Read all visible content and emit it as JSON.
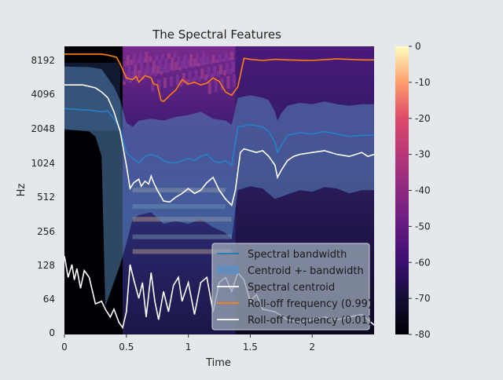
{
  "chart_data": {
    "type": "spectrogram",
    "title": "The Spectral Features",
    "xlabel": "Time",
    "ylabel": "Hz",
    "xlim": [
      0,
      2.5
    ],
    "y_scale": "log2",
    "y_ticks": [
      {
        "value": 0,
        "label": "0"
      },
      {
        "value": 64,
        "label": "64"
      },
      {
        "value": 128,
        "label": "128"
      },
      {
        "value": 256,
        "label": "256"
      },
      {
        "value": 512,
        "label": "512"
      },
      {
        "value": 1024,
        "label": "1024"
      },
      {
        "value": 2048,
        "label": "2048"
      },
      {
        "value": 4096,
        "label": "4096"
      },
      {
        "value": 8192,
        "label": "8192"
      }
    ],
    "x_ticks": [
      {
        "value": 0,
        "label": "0"
      },
      {
        "value": 0.5,
        "label": "0.5"
      },
      {
        "value": 1,
        "label": "1"
      },
      {
        "value": 1.5,
        "label": "1.5"
      },
      {
        "value": 2,
        "label": "2"
      }
    ],
    "colorbar": {
      "colormap": "magma",
      "range": [
        -80,
        0
      ],
      "ticks": [
        "0",
        "-10",
        "-20",
        "-30",
        "-40",
        "-50",
        "-60",
        "-70",
        "-80"
      ]
    },
    "grid": false,
    "legend_position": "lower right",
    "series": [
      {
        "name": "Spectral bandwidth",
        "color": "#1f77b4",
        "style": "line"
      },
      {
        "name": "Centroid +- bandwidth",
        "color": "#5b8fc4",
        "style": "band"
      },
      {
        "name": "Spectral centroid",
        "color": "#ffffff",
        "style": "line"
      },
      {
        "name": "Roll-off frequency (0.99)",
        "color": "#ff7f0e",
        "style": "line"
      },
      {
        "name": "Roll-off frequency (0.01)",
        "color": "#ffffff",
        "style": "line"
      }
    ],
    "lines": {
      "bandwidth": [
        [
          0,
          3200
        ],
        [
          0.2,
          3100
        ],
        [
          0.3,
          3000
        ],
        [
          0.35,
          3050
        ],
        [
          0.4,
          2600
        ],
        [
          0.45,
          2100
        ],
        [
          0.5,
          1300
        ],
        [
          0.55,
          1150
        ],
        [
          0.6,
          1050
        ],
        [
          0.65,
          1200
        ],
        [
          0.7,
          1250
        ],
        [
          0.75,
          1200
        ],
        [
          0.8,
          1100
        ],
        [
          0.85,
          1050
        ],
        [
          0.9,
          1050
        ],
        [
          0.95,
          1100
        ],
        [
          1.0,
          1150
        ],
        [
          1.05,
          1100
        ],
        [
          1.1,
          1200
        ],
        [
          1.15,
          1250
        ],
        [
          1.2,
          1100
        ],
        [
          1.25,
          1050
        ],
        [
          1.3,
          1100
        ],
        [
          1.35,
          1000
        ],
        [
          1.4,
          2200
        ],
        [
          1.5,
          2300
        ],
        [
          1.6,
          2200
        ],
        [
          1.65,
          2000
        ],
        [
          1.7,
          1600
        ],
        [
          1.72,
          1300
        ],
        [
          1.75,
          1500
        ],
        [
          1.8,
          1850
        ],
        [
          1.9,
          1950
        ],
        [
          2.0,
          1900
        ],
        [
          2.1,
          2000
        ],
        [
          2.2,
          1900
        ],
        [
          2.3,
          1800
        ],
        [
          2.4,
          1850
        ],
        [
          2.5,
          1850
        ]
      ],
      "band_upper": [
        [
          0,
          7600
        ],
        [
          0.2,
          7500
        ],
        [
          0.3,
          7200
        ],
        [
          0.35,
          6000
        ],
        [
          0.4,
          5000
        ],
        [
          0.45,
          3800
        ],
        [
          0.5,
          2400
        ],
        [
          0.55,
          2200
        ],
        [
          0.6,
          2500
        ],
        [
          0.7,
          2600
        ],
        [
          0.8,
          2500
        ],
        [
          0.9,
          2700
        ],
        [
          1.0,
          2800
        ],
        [
          1.1,
          3000
        ],
        [
          1.2,
          2600
        ],
        [
          1.3,
          2500
        ],
        [
          1.35,
          2300
        ],
        [
          1.4,
          4000
        ],
        [
          1.5,
          4200
        ],
        [
          1.6,
          4000
        ],
        [
          1.65,
          3800
        ],
        [
          1.7,
          3000
        ],
        [
          1.72,
          2500
        ],
        [
          1.75,
          2900
        ],
        [
          1.8,
          3400
        ],
        [
          1.9,
          3600
        ],
        [
          2.0,
          3500
        ],
        [
          2.1,
          3700
        ],
        [
          2.2,
          3500
        ],
        [
          2.3,
          3400
        ],
        [
          2.4,
          3500
        ],
        [
          2.5,
          3500
        ]
      ],
      "band_lower": [
        [
          0,
          2100
        ],
        [
          0.2,
          2000
        ],
        [
          0.25,
          1800
        ],
        [
          0.3,
          1200
        ],
        [
          0.33,
          50
        ],
        [
          0.45,
          130
        ],
        [
          0.5,
          200
        ],
        [
          0.55,
          330
        ],
        [
          0.6,
          360
        ],
        [
          0.7,
          380
        ],
        [
          0.8,
          300
        ],
        [
          0.9,
          320
        ],
        [
          1.0,
          300
        ],
        [
          1.1,
          330
        ],
        [
          1.2,
          280
        ],
        [
          1.3,
          250
        ],
        [
          1.35,
          220
        ],
        [
          1.4,
          600
        ],
        [
          1.5,
          650
        ],
        [
          1.6,
          620
        ],
        [
          1.7,
          500
        ],
        [
          1.8,
          550
        ],
        [
          1.9,
          600
        ],
        [
          2.0,
          580
        ],
        [
          2.1,
          640
        ],
        [
          2.2,
          620
        ],
        [
          2.3,
          560
        ],
        [
          2.4,
          600
        ],
        [
          2.5,
          600
        ]
      ],
      "centroid": [
        [
          0,
          5200
        ],
        [
          0.15,
          5200
        ],
        [
          0.25,
          4900
        ],
        [
          0.3,
          4500
        ],
        [
          0.35,
          4000
        ],
        [
          0.4,
          3000
        ],
        [
          0.45,
          2000
        ],
        [
          0.5,
          1000
        ],
        [
          0.53,
          620
        ],
        [
          0.56,
          700
        ],
        [
          0.6,
          750
        ],
        [
          0.62,
          650
        ],
        [
          0.65,
          720
        ],
        [
          0.68,
          680
        ],
        [
          0.7,
          800
        ],
        [
          0.72,
          700
        ],
        [
          0.75,
          600
        ],
        [
          0.8,
          480
        ],
        [
          0.85,
          470
        ],
        [
          0.9,
          520
        ],
        [
          0.95,
          560
        ],
        [
          1.0,
          620
        ],
        [
          1.05,
          560
        ],
        [
          1.1,
          600
        ],
        [
          1.15,
          700
        ],
        [
          1.2,
          780
        ],
        [
          1.25,
          600
        ],
        [
          1.3,
          500
        ],
        [
          1.35,
          440
        ],
        [
          1.38,
          600
        ],
        [
          1.42,
          1300
        ],
        [
          1.45,
          1400
        ],
        [
          1.5,
          1350
        ],
        [
          1.55,
          1300
        ],
        [
          1.6,
          1350
        ],
        [
          1.65,
          1200
        ],
        [
          1.7,
          1000
        ],
        [
          1.72,
          780
        ],
        [
          1.75,
          900
        ],
        [
          1.8,
          1100
        ],
        [
          1.85,
          1200
        ],
        [
          1.9,
          1250
        ],
        [
          2.0,
          1300
        ],
        [
          2.1,
          1350
        ],
        [
          2.2,
          1250
        ],
        [
          2.3,
          1200
        ],
        [
          2.4,
          1300
        ],
        [
          2.45,
          1200
        ],
        [
          2.5,
          1250
        ]
      ],
      "rolloff_99": [
        [
          0,
          9800
        ],
        [
          0.3,
          9800
        ],
        [
          0.35,
          9600
        ],
        [
          0.42,
          9200
        ],
        [
          0.45,
          8000
        ],
        [
          0.5,
          6000
        ],
        [
          0.55,
          5800
        ],
        [
          0.58,
          6200
        ],
        [
          0.6,
          5500
        ],
        [
          0.65,
          6300
        ],
        [
          0.7,
          6000
        ],
        [
          0.72,
          5300
        ],
        [
          0.75,
          5200
        ],
        [
          0.78,
          3800
        ],
        [
          0.8,
          3700
        ],
        [
          0.85,
          4200
        ],
        [
          0.9,
          4700
        ],
        [
          0.95,
          5800
        ],
        [
          1.0,
          5300
        ],
        [
          1.05,
          5500
        ],
        [
          1.1,
          5200
        ],
        [
          1.15,
          5400
        ],
        [
          1.2,
          6000
        ],
        [
          1.25,
          5600
        ],
        [
          1.3,
          4500
        ],
        [
          1.35,
          4200
        ],
        [
          1.4,
          5000
        ],
        [
          1.45,
          9000
        ],
        [
          1.5,
          8800
        ],
        [
          1.6,
          8600
        ],
        [
          1.7,
          8800
        ],
        [
          1.8,
          8700
        ],
        [
          2.0,
          8600
        ],
        [
          2.2,
          8900
        ],
        [
          2.4,
          8700
        ],
        [
          2.5,
          8700
        ]
      ],
      "rolloff_01": [
        [
          0,
          155
        ],
        [
          0.03,
          100
        ],
        [
          0.06,
          130
        ],
        [
          0.08,
          95
        ],
        [
          0.1,
          120
        ],
        [
          0.13,
          80
        ],
        [
          0.16,
          115
        ],
        [
          0.2,
          100
        ],
        [
          0.25,
          55
        ],
        [
          0.3,
          60
        ],
        [
          0.33,
          45
        ],
        [
          0.37,
          30
        ],
        [
          0.4,
          45
        ],
        [
          0.44,
          20
        ],
        [
          0.47,
          10
        ],
        [
          0.5,
          40
        ],
        [
          0.53,
          130
        ],
        [
          0.56,
          95
        ],
        [
          0.6,
          65
        ],
        [
          0.63,
          90
        ],
        [
          0.66,
          30
        ],
        [
          0.7,
          110
        ],
        [
          0.73,
          60
        ],
        [
          0.76,
          25
        ],
        [
          0.8,
          75
        ],
        [
          0.84,
          40
        ],
        [
          0.88,
          85
        ],
        [
          0.92,
          100
        ],
        [
          0.95,
          60
        ],
        [
          1.0,
          90
        ],
        [
          1.05,
          35
        ],
        [
          1.1,
          90
        ],
        [
          1.15,
          100
        ],
        [
          1.2,
          40
        ],
        [
          1.25,
          90
        ],
        [
          1.3,
          100
        ],
        [
          1.35,
          75
        ],
        [
          1.4,
          110
        ],
        [
          1.45,
          95
        ],
        [
          1.5,
          60
        ],
        [
          1.55,
          70
        ],
        [
          1.6,
          45
        ],
        [
          1.7,
          40
        ],
        [
          1.8,
          25
        ],
        [
          1.9,
          20
        ],
        [
          2.0,
          25
        ],
        [
          2.1,
          30
        ],
        [
          2.2,
          25
        ],
        [
          2.3,
          30
        ],
        [
          2.4,
          35
        ],
        [
          2.5,
          15
        ]
      ]
    }
  }
}
